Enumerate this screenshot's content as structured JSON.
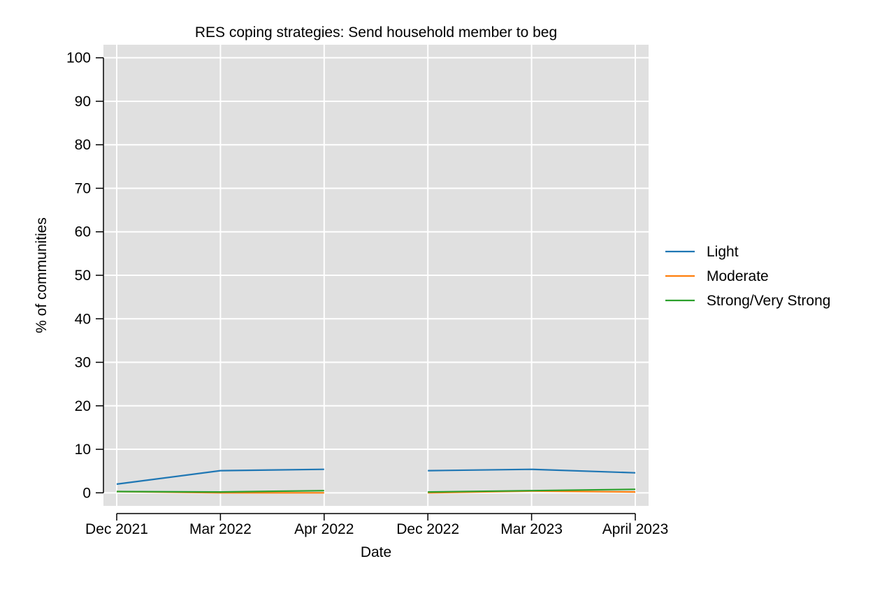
{
  "chart_data": {
    "type": "line",
    "title": "RES coping strategies: Send household member to beg",
    "xlabel": "Date",
    "ylabel": "% of communities",
    "categories": [
      "Dec 2021",
      "Mar 2022",
      "Apr 2022",
      "Dec 2022",
      "Mar 2023",
      "April 2023"
    ],
    "ylim": [
      -3,
      103
    ],
    "yticks": [
      0,
      10,
      20,
      30,
      40,
      50,
      60,
      70,
      80,
      90,
      100
    ],
    "grid": true,
    "legend_position": "right",
    "series": [
      {
        "name": "Light",
        "color": "#1f77b4",
        "values": [
          2.0,
          5.1,
          5.4,
          5.1,
          5.4,
          4.6
        ]
      },
      {
        "name": "Moderate",
        "color": "#ff7f0e",
        "values": [
          0.3,
          0.0,
          0.0,
          0.0,
          0.4,
          0.2
        ]
      },
      {
        "name": "Strong/Very Strong",
        "color": "#2ca02c",
        "values": [
          0.3,
          0.2,
          0.5,
          0.2,
          0.5,
          0.8
        ]
      }
    ],
    "segments": [
      [
        0,
        2
      ],
      [
        3,
        5
      ]
    ]
  }
}
